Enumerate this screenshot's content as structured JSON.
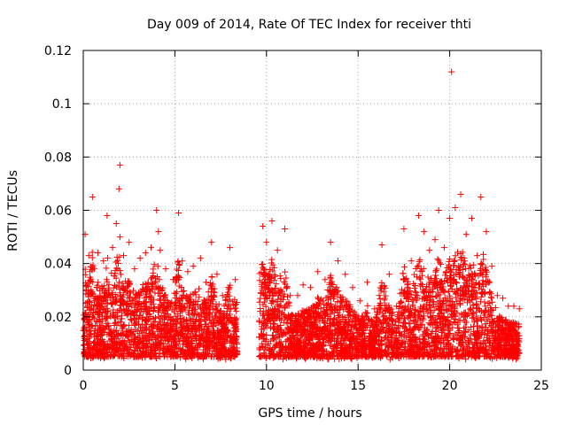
{
  "chart_data": {
    "type": "scatter",
    "title": "Day 009 of 2014, Rate Of TEC Index for receiver thti",
    "xlabel": "GPS time / hours",
    "ylabel": "ROTI / TECUs",
    "xlim": [
      0,
      25
    ],
    "ylim": [
      0,
      0.12
    ],
    "xticks": [
      0,
      5,
      10,
      15,
      20,
      25
    ],
    "xtick_labels": [
      "0",
      "5",
      "10",
      "15",
      "20",
      "25"
    ],
    "yticks": [
      0,
      0.02,
      0.04,
      0.06,
      0.08,
      0.1,
      0.12
    ],
    "ytick_labels": [
      "0",
      "0.02",
      "0.04",
      "0.06",
      "0.08",
      "0.1",
      "0.12"
    ],
    "grid": true,
    "marker": "+",
    "series": [
      {
        "name": "ROTI",
        "color": "#ff0000",
        "description": "Dense cloud of ROTI samples (~0.003–0.05 TECU/min) from 0 to ~8.4 h and ~9.6 to ~23.8 h, with a data gap between ~8.4 h and ~9.6 h",
        "x": [
          0.1,
          0.3,
          0.5,
          0.6,
          0.8,
          1.1,
          1.3,
          1.6,
          1.8,
          1.95,
          2.0,
          2.0,
          2.2,
          2.5,
          2.8,
          3.1,
          3.4,
          3.7,
          4.0,
          4.1,
          4.2,
          4.5,
          4.9,
          5.2,
          5.4,
          5.7,
          6.0,
          6.4,
          6.7,
          7.0,
          7.3,
          7.6,
          8.0,
          8.3,
          9.8,
          10.0,
          10.3,
          10.6,
          11.0,
          11.3,
          11.7,
          12.0,
          12.4,
          12.8,
          13.2,
          13.5,
          13.9,
          14.3,
          14.7,
          15.1,
          15.5,
          15.9,
          16.3,
          16.7,
          17.1,
          17.5,
          17.9,
          18.3,
          18.6,
          18.9,
          19.2,
          19.4,
          19.7,
          20.0,
          20.1,
          20.3,
          20.6,
          20.9,
          21.2,
          21.5,
          21.7,
          22.0,
          22.3,
          22.6,
          22.9,
          23.2,
          23.5,
          23.8
        ],
        "y": [
          0.051,
          0.043,
          0.065,
          0.038,
          0.044,
          0.041,
          0.058,
          0.046,
          0.055,
          0.068,
          0.077,
          0.05,
          0.043,
          0.048,
          0.038,
          0.042,
          0.044,
          0.046,
          0.06,
          0.052,
          0.045,
          0.038,
          0.034,
          0.059,
          0.041,
          0.037,
          0.039,
          0.042,
          0.033,
          0.048,
          0.036,
          0.028,
          0.046,
          0.034,
          0.054,
          0.048,
          0.056,
          0.045,
          0.053,
          0.028,
          0.028,
          0.032,
          0.031,
          0.037,
          0.034,
          0.048,
          0.041,
          0.036,
          0.031,
          0.026,
          0.033,
          0.023,
          0.047,
          0.036,
          0.024,
          0.053,
          0.041,
          0.058,
          0.052,
          0.045,
          0.049,
          0.06,
          0.046,
          0.057,
          0.112,
          0.061,
          0.066,
          0.051,
          0.057,
          0.043,
          0.065,
          0.052,
          0.039,
          0.028,
          0.027,
          0.024,
          0.024,
          0.023
        ]
      }
    ]
  }
}
